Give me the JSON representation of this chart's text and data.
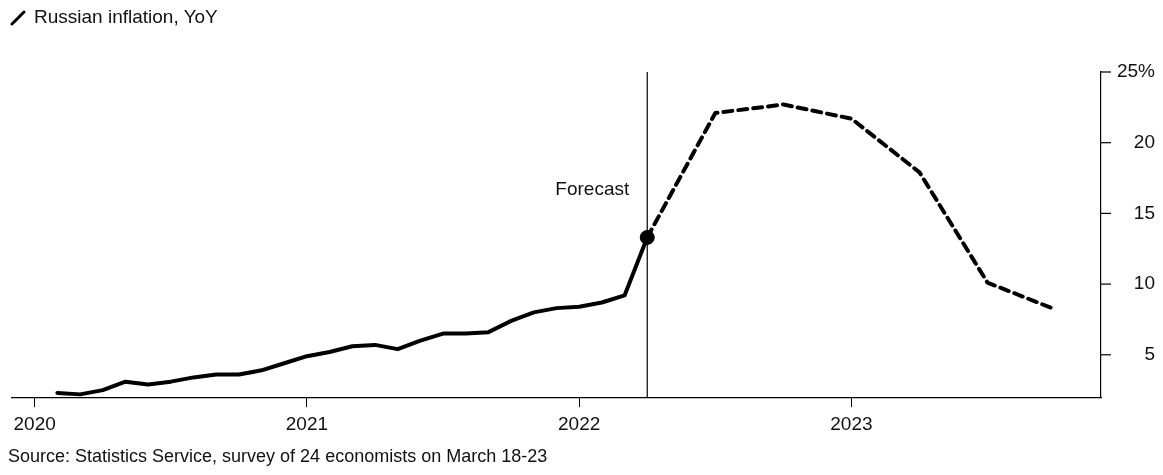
{
  "chart_data": {
    "type": "line",
    "title": "Russian inflation, YoY",
    "x": [
      "2020-02",
      "2020-03",
      "2020-04",
      "2020-05",
      "2020-06",
      "2020-07",
      "2020-08",
      "2020-09",
      "2020-10",
      "2020-11",
      "2020-12",
      "2021-01",
      "2021-02",
      "2021-03",
      "2021-04",
      "2021-05",
      "2021-06",
      "2021-07",
      "2021-08",
      "2021-09",
      "2021-10",
      "2021-11",
      "2021-12",
      "2022-01",
      "2022-02",
      "2022-03",
      "2022-04"
    ],
    "series": [
      {
        "color": "#000000",
        "line_style": "solid",
        "marker": "none",
        "values": [
          2.3,
          2.2,
          2.5,
          3.1,
          2.9,
          3.1,
          3.4,
          3.6,
          3.6,
          3.9,
          4.4,
          4.9,
          5.2,
          5.6,
          5.7,
          5.4,
          6.0,
          6.5,
          6.5,
          6.6,
          7.4,
          8.0,
          8.3,
          8.4,
          8.7,
          9.2,
          13.3
        ]
      },
      {
        "color": "#000000",
        "line_style": "dashed",
        "marker": "none",
        "x": [
          "2022-04",
          "2022-07",
          "2022-10",
          "2023-01",
          "2023-04",
          "2023-07",
          "2023-10"
        ],
        "values": [
          13.3,
          22.1,
          22.7,
          21.7,
          17.9,
          10.1,
          8.2
        ]
      },
      {
        "type": "scatter",
        "color": "#000000",
        "marker": "circle",
        "x": [
          "2022-04"
        ],
        "values": [
          13.3
        ]
      }
    ],
    "xlim": [
      "2019-12",
      "2023-12"
    ],
    "xticks": [
      {
        "value": "2020",
        "label": "2020"
      },
      {
        "value": "2021",
        "label": "2021"
      },
      {
        "value": "2022",
        "label": "2022"
      },
      {
        "value": "2023",
        "label": "2023"
      }
    ],
    "ylim": [
      2,
      25
    ],
    "yticks": [
      5,
      10,
      15,
      20,
      {
        "value": 25,
        "label": "25%"
      }
    ],
    "grid": false,
    "legend": false,
    "ref_lines": [
      {
        "axis": "x",
        "value": "2022-04",
        "label": "Forecast",
        "color": "#000000"
      }
    ],
    "annotations": [
      "Source: Statistics Service, survey of 24 economists on March 18-23"
    ]
  }
}
